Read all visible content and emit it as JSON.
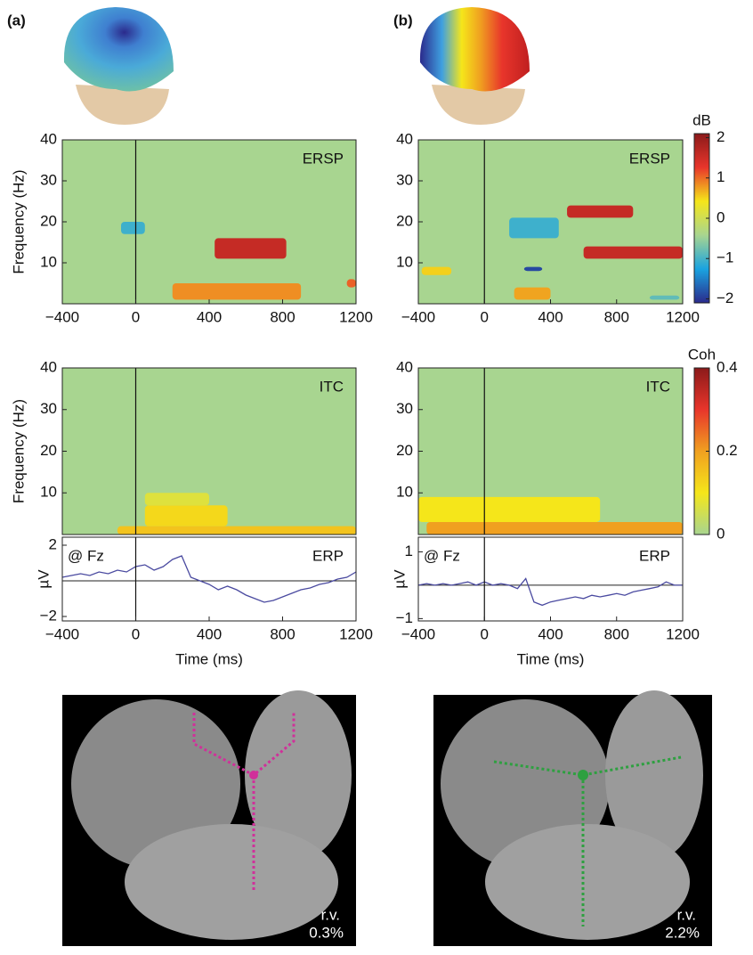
{
  "figure": {
    "panel_labels": [
      "(a)",
      "(b)"
    ],
    "rv": [
      {
        "label": "r.v.",
        "value": "0.3%"
      },
      {
        "label": "r.v.",
        "value": "2.2%"
      }
    ]
  },
  "chart_data": [
    {
      "type": "heatmap",
      "title": "ERSP",
      "ylabel": "Frequency (Hz)",
      "xlim": [
        -400,
        1200
      ],
      "ylim": [
        0,
        40
      ],
      "xticks": [
        {
          "value": -400,
          "label": "−400"
        },
        0,
        400,
        800,
        1200
      ],
      "yticks": [
        10,
        20,
        30,
        40
      ],
      "background": "#a8d590",
      "clim": [
        -2,
        2
      ],
      "colormap": [
        "#2b2a8c",
        "#1aa3e0",
        "#a8d590",
        "#f5e61a",
        "#e8352b",
        "#8b1a1a"
      ],
      "blobs": [
        {
          "x": [
            -80,
            50
          ],
          "y": [
            17,
            20
          ],
          "value": -1
        },
        {
          "x": [
            430,
            820
          ],
          "y": [
            11,
            16
          ],
          "value": 1.5
        },
        {
          "x": [
            200,
            900
          ],
          "y": [
            1,
            5
          ],
          "value": 0.8
        },
        {
          "x": [
            1150,
            1200
          ],
          "y": [
            4,
            6
          ],
          "value": 1
        }
      ]
    },
    {
      "type": "heatmap",
      "title": "ITC",
      "ylabel": "Frequency (Hz)",
      "xlim": [
        -400,
        1200
      ],
      "ylim": [
        0,
        40
      ],
      "yticks": [
        10,
        20,
        30,
        40
      ],
      "background": "#a8d590",
      "clim": [
        0,
        0.4
      ],
      "colormap": [
        "#a8d590",
        "#f5e61a",
        "#f0a020",
        "#e8352b",
        "#8b1a1a"
      ],
      "blobs": [
        {
          "x": [
            -100,
            1200
          ],
          "y": [
            0,
            2
          ],
          "value": 0.15
        },
        {
          "x": [
            50,
            500
          ],
          "y": [
            2,
            7
          ],
          "value": 0.12
        },
        {
          "x": [
            50,
            400
          ],
          "y": [
            7,
            10
          ],
          "value": 0.07
        }
      ]
    },
    {
      "type": "line",
      "title": "ERP",
      "annotation": "@ Fz",
      "ylabel": "µV",
      "xlabel": "Time (ms)",
      "color": "#4a4aa0",
      "xlim": [
        -400,
        1200
      ],
      "ylim": [
        -2.25,
        2.45
      ],
      "xticks": [
        {
          "value": -400,
          "label": "−400"
        },
        0,
        400,
        800,
        1200
      ],
      "yticks": [
        {
          "value": -2,
          "label": "−2"
        },
        2
      ],
      "x": [
        -400,
        -350,
        -300,
        -250,
        -200,
        -150,
        -100,
        -50,
        0,
        50,
        100,
        150,
        200,
        250,
        300,
        350,
        400,
        450,
        500,
        550,
        600,
        650,
        700,
        750,
        800,
        850,
        900,
        950,
        1000,
        1050,
        1100,
        1150,
        1200
      ],
      "values": [
        0.2,
        0.3,
        0.4,
        0.3,
        0.5,
        0.4,
        0.6,
        0.5,
        0.8,
        0.9,
        0.6,
        0.8,
        1.2,
        1.4,
        0.2,
        0,
        -0.2,
        -0.5,
        -0.3,
        -0.5,
        -0.8,
        -1.0,
        -1.2,
        -1.1,
        -0.9,
        -0.7,
        -0.5,
        -0.4,
        -0.2,
        -0.1,
        0.1,
        0.2,
        0.5
      ]
    },
    {
      "type": "heatmap",
      "title": "ERSP",
      "xlim": [
        -400,
        1200
      ],
      "ylim": [
        0,
        40
      ],
      "xticks": [
        {
          "value": -400,
          "label": "−400"
        },
        0,
        400,
        800,
        1200
      ],
      "yticks": [
        10,
        20,
        30,
        40
      ],
      "background": "#a8d590",
      "clim": [
        -2,
        2
      ],
      "colormap": [
        "#2b2a8c",
        "#1aa3e0",
        "#a8d590",
        "#f5e61a",
        "#e8352b",
        "#8b1a1a"
      ],
      "blobs": [
        {
          "x": [
            -380,
            -200
          ],
          "y": [
            7,
            9
          ],
          "value": 0.5
        },
        {
          "x": [
            150,
            450
          ],
          "y": [
            16,
            21
          ],
          "value": -1
        },
        {
          "x": [
            240,
            350
          ],
          "y": [
            8,
            9
          ],
          "value": -1.8
        },
        {
          "x": [
            500,
            900
          ],
          "y": [
            21,
            24
          ],
          "value": 1.5
        },
        {
          "x": [
            600,
            1200
          ],
          "y": [
            11,
            14
          ],
          "value": 1.5
        },
        {
          "x": [
            180,
            400
          ],
          "y": [
            1,
            4
          ],
          "value": 0.7
        },
        {
          "x": [
            1000,
            1180
          ],
          "y": [
            1,
            2
          ],
          "value": -0.8
        }
      ]
    },
    {
      "type": "heatmap",
      "title": "ITC",
      "xlim": [
        -400,
        1200
      ],
      "ylim": [
        0,
        40
      ],
      "yticks": [
        10,
        20,
        30,
        40
      ],
      "background": "#a8d590",
      "clim": [
        0,
        0.4
      ],
      "colormap": [
        "#a8d590",
        "#f5e61a",
        "#f0a020",
        "#e8352b",
        "#8b1a1a"
      ],
      "blobs": [
        {
          "x": [
            -350,
            1200
          ],
          "y": [
            0,
            3
          ],
          "value": 0.2
        },
        {
          "x": [
            -400,
            700
          ],
          "y": [
            3,
            9
          ],
          "value": 0.1
        }
      ]
    },
    {
      "type": "line",
      "title": "ERP",
      "annotation": "@ Fz",
      "ylabel": "µV",
      "xlabel": "Time (ms)",
      "color": "#4a4aa0",
      "xlim": [
        -400,
        1200
      ],
      "ylim": [
        -1.07,
        1.44
      ],
      "xticks": [
        {
          "value": -400,
          "label": "−400"
        },
        0,
        400,
        800,
        1200
      ],
      "yticks": [
        {
          "value": -1,
          "label": "−1"
        },
        1
      ],
      "x": [
        -400,
        -350,
        -300,
        -250,
        -200,
        -150,
        -100,
        -50,
        0,
        50,
        100,
        150,
        200,
        250,
        300,
        350,
        400,
        450,
        500,
        550,
        600,
        650,
        700,
        750,
        800,
        850,
        900,
        950,
        1000,
        1050,
        1100,
        1150,
        1200
      ],
      "values": [
        0,
        0.05,
        0,
        0.05,
        0,
        0.05,
        0.1,
        0,
        0.1,
        0,
        0.05,
        0,
        -0.1,
        0.2,
        -0.5,
        -0.6,
        -0.5,
        -0.45,
        -0.4,
        -0.35,
        -0.4,
        -0.3,
        -0.35,
        -0.3,
        -0.25,
        -0.3,
        -0.2,
        -0.15,
        -0.1,
        -0.05,
        0.1,
        0,
        0
      ]
    },
    {
      "type": "colorbar",
      "title": "dB",
      "ylim": [
        -2.1,
        2.1
      ],
      "yticks": [
        {
          "value": -2,
          "label": "−2"
        },
        {
          "value": -1,
          "label": "−1"
        },
        0,
        1,
        2
      ],
      "colormap": [
        "#2b2a8c",
        "#1aa3e0",
        "#a8d590",
        "#f5e61a",
        "#e8352b",
        "#8b1a1a"
      ]
    },
    {
      "type": "colorbar",
      "title": "Coh",
      "ylim": [
        0,
        0.4
      ],
      "yticks": [
        0,
        0.2,
        0.4
      ],
      "colormap": [
        "#a8d590",
        "#f5e61a",
        "#f0a020",
        "#e8352b",
        "#8b1a1a"
      ]
    }
  ]
}
